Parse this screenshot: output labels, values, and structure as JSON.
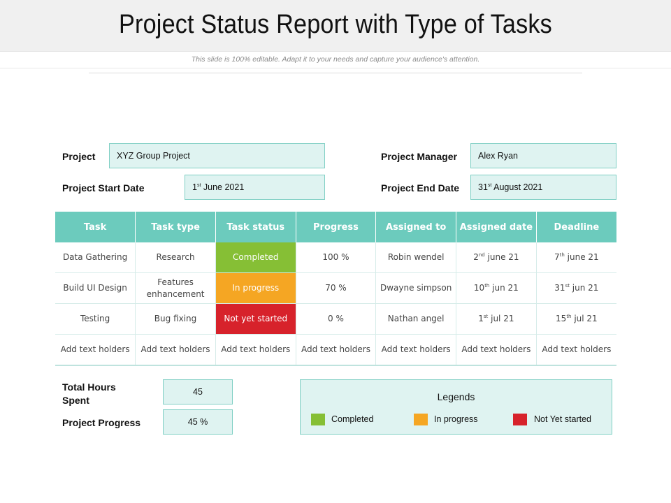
{
  "header": {
    "title": "Project Status Report with Type of Tasks",
    "subtitle": "This slide is 100% editable. Adapt it to your needs and capture your audience's attention."
  },
  "project_info": {
    "project_label": "Project",
    "project_value": "XYZ Group Project",
    "start_label": "Project Start Date",
    "start_day": "1",
    "start_suffix": "st",
    "start_rest": " June 2021",
    "manager_label": "Project Manager",
    "manager_value": "Alex Ryan",
    "end_label": "Project End Date",
    "end_day": "31",
    "end_suffix": "st",
    "end_rest": " August 2021"
  },
  "table": {
    "headers": [
      "Task",
      "Task type",
      "Task status",
      "Progress",
      "Assigned to",
      "Assigned date",
      "Deadline"
    ],
    "rows": [
      {
        "task": "Data Gathering",
        "type": "Research",
        "status": "Completed",
        "progress": "100 %",
        "assigned_to": "Robin wendel",
        "a_day": "2",
        "a_sup": "nd",
        "a_rest": " june 21",
        "d_day": "7",
        "d_sup": "th",
        "d_rest": " june 21"
      },
      {
        "task": "Build UI Design",
        "type": "Features enhancement",
        "status": "In progress",
        "progress": "70 %",
        "assigned_to": "Dwayne simpson",
        "a_day": "10",
        "a_sup": "th",
        "a_rest": " jun 21",
        "d_day": "31",
        "d_sup": "st",
        "d_rest": " jun 21"
      },
      {
        "task": "Testing",
        "type": "Bug fixing",
        "status": "Not yet started",
        "progress": "0 %",
        "assigned_to": "Nathan angel",
        "a_day": "1",
        "a_sup": "st",
        "a_rest": " jul 21",
        "d_day": "15",
        "d_sup": "th",
        "d_rest": " jul 21"
      },
      {
        "task": "Add text holders",
        "type": "Add text holders",
        "status": "Add text holders",
        "progress": "Add text holders",
        "assigned_to": "Add text holders",
        "a_text": "Add text holders",
        "d_text": "Add text holders"
      }
    ]
  },
  "summary": {
    "hours_label": "Total Hours Spent",
    "hours_value": "45",
    "progress_label": "Project Progress",
    "progress_value": "45 %"
  },
  "legend": {
    "title": "Legends",
    "items": [
      {
        "label": "Completed",
        "color": "#86bf35"
      },
      {
        "label": "In progress",
        "color": "#f5a623"
      },
      {
        "label": "Not Yet started",
        "color": "#d7222b"
      }
    ]
  },
  "colors": {
    "header_teal": "#6ccbbd",
    "box_fill": "#dff3f1",
    "box_border": "#7fcfc4"
  }
}
